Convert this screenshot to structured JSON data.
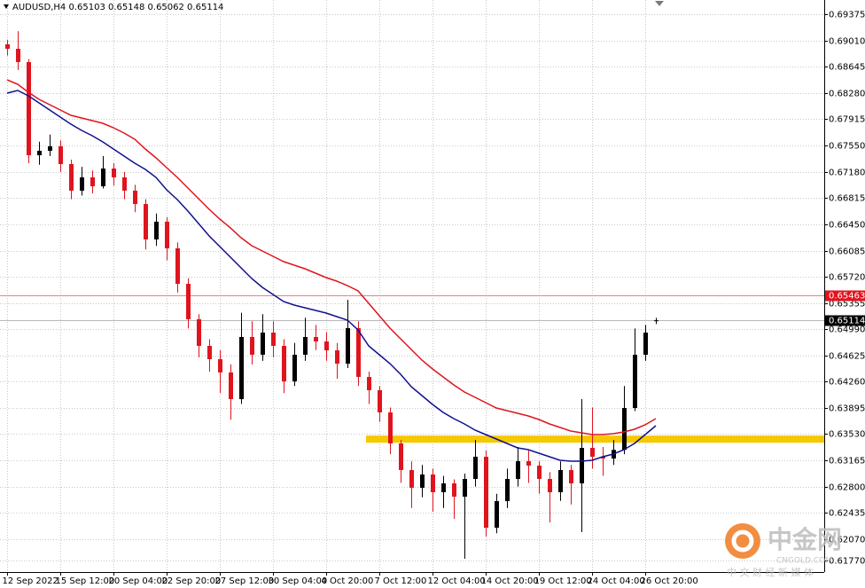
{
  "chart_data": {
    "type": "candlestick",
    "title": "AUDUSD,H4  0.65103 0.65148 0.65062 0.65114",
    "categories": [
      "12 Sep 2022",
      null,
      null,
      null,
      null,
      "15 Sep 12:00",
      null,
      null,
      null,
      null,
      "20 Sep 04:00",
      null,
      null,
      null,
      null,
      "22 Sep 20:00",
      null,
      null,
      null,
      null,
      "27 Sep 12:00",
      null,
      null,
      null,
      null,
      "30 Sep 04:00",
      null,
      null,
      null,
      null,
      "4 Oct 20:00",
      null,
      null,
      null,
      null,
      "7 Oct 12:00",
      null,
      null,
      null,
      null,
      "12 Oct 04:00",
      null,
      null,
      null,
      null,
      "14 Oct 20:00",
      null,
      null,
      null,
      null,
      "19 Oct 12:00",
      null,
      null,
      null,
      null,
      "24 Oct 04:00",
      null,
      null,
      null,
      null,
      "26 Oct 20:00",
      null
    ],
    "open": [
      0.68956,
      0.68894,
      0.68709,
      0.67412,
      0.67474,
      0.67536,
      0.67289,
      0.66919,
      0.67104,
      0.6698,
      0.67227,
      0.67104,
      0.66919,
      0.66733,
      0.6624,
      0.66487,
      0.66116,
      0.65622,
      0.65129,
      0.64758,
      0.64573,
      0.64388,
      0.64017,
      0.64882,
      0.64635,
      0.64943,
      0.64758,
      0.64264,
      0.64635,
      0.64882,
      0.6482,
      0.64696,
      0.64511,
      0.65005,
      0.64326,
      0.64141,
      0.63832,
      0.634,
      0.6303,
      0.62783,
      0.62968,
      0.62721,
      0.62844,
      0.62659,
      0.62906,
      0.63215,
      0.62227,
      0.62597,
      0.62906,
      0.63153,
      0.63091,
      0.62906,
      0.62721,
      0.6303,
      0.62844,
      0.63338,
      0.63215,
      0.6319,
      0.6331,
      0.63894,
      0.64635,
      0.65103
    ],
    "high": [
      0.6902,
      0.6914,
      0.6875,
      0.676,
      0.677,
      0.6762,
      0.6735,
      0.6725,
      0.672,
      0.674,
      0.673,
      0.6718,
      0.67,
      0.668,
      0.666,
      0.6655,
      0.662,
      0.657,
      0.652,
      0.6485,
      0.647,
      0.645,
      0.6522,
      0.651,
      0.652,
      0.651,
      0.6485,
      0.648,
      0.6515,
      0.6505,
      0.6495,
      0.648,
      0.654,
      0.651,
      0.644,
      0.642,
      0.639,
      0.6345,
      0.6315,
      0.631,
      0.6305,
      0.6295,
      0.629,
      0.6298,
      0.6345,
      0.633,
      0.627,
      0.6305,
      0.6335,
      0.633,
      0.6315,
      0.63,
      0.6315,
      0.631,
      0.64017,
      0.639,
      0.6335,
      0.6345,
      0.642,
      0.65,
      0.6505,
      0.65148
    ],
    "low": [
      0.688,
      0.686,
      0.673,
      0.6728,
      0.674,
      0.6718,
      0.668,
      0.6685,
      0.6688,
      0.6695,
      0.6699,
      0.668,
      0.6662,
      0.661,
      0.6615,
      0.6595,
      0.655,
      0.65,
      0.646,
      0.644,
      0.641,
      0.6373,
      0.6395,
      0.645,
      0.6455,
      0.646,
      0.641,
      0.642,
      0.6455,
      0.647,
      0.6455,
      0.643,
      0.6445,
      0.642,
      0.6395,
      0.637,
      0.6325,
      0.6285,
      0.625,
      0.6265,
      0.6245,
      0.625,
      0.6235,
      0.61795,
      0.628,
      0.62104,
      0.6215,
      0.625,
      0.628,
      0.6285,
      0.627,
      0.623,
      0.626,
      0.6255,
      0.62166,
      0.6305,
      0.6295,
      0.631,
      0.6325,
      0.6385,
      0.6455,
      0.65062
    ],
    "close": [
      0.68894,
      0.68709,
      0.67412,
      0.67474,
      0.67536,
      0.67289,
      0.66919,
      0.67104,
      0.6698,
      0.67227,
      0.67104,
      0.66919,
      0.66733,
      0.6624,
      0.66487,
      0.66116,
      0.65622,
      0.65129,
      0.64758,
      0.64573,
      0.64388,
      0.64017,
      0.64882,
      0.64635,
      0.64943,
      0.64758,
      0.64264,
      0.64635,
      0.64882,
      0.6482,
      0.64696,
      0.64511,
      0.65005,
      0.64326,
      0.64141,
      0.63832,
      0.634,
      0.6303,
      0.62783,
      0.62968,
      0.62721,
      0.62844,
      0.62659,
      0.62906,
      0.63215,
      0.62227,
      0.62597,
      0.62906,
      0.63153,
      0.63091,
      0.62906,
      0.62721,
      0.6303,
      0.62844,
      0.63338,
      0.63215,
      0.6319,
      0.6331,
      0.63894,
      0.64635,
      0.64943,
      0.65114
    ],
    "up_color": "#000000",
    "down_color": "#e0141e",
    "series": [
      {
        "color": "#e0141e",
        "values": [
          0.68462,
          0.684,
          0.68289,
          0.6819,
          0.68116,
          0.68042,
          0.67968,
          0.67931,
          0.67894,
          0.67857,
          0.67795,
          0.67721,
          0.67635,
          0.67499,
          0.67375,
          0.6724,
          0.67104,
          0.66956,
          0.66808,
          0.66659,
          0.66524,
          0.664,
          0.66264,
          0.66153,
          0.66079,
          0.66005,
          0.65931,
          0.65882,
          0.65832,
          0.6577,
          0.65709,
          0.65659,
          0.65598,
          0.65524,
          0.65351,
          0.65178,
          0.65005,
          0.64857,
          0.64709,
          0.64561,
          0.64437,
          0.64326,
          0.64215,
          0.64116,
          0.64042,
          0.63968,
          0.63894,
          0.63857,
          0.6382,
          0.63783,
          0.63733,
          0.63672,
          0.63622,
          0.63573,
          0.63548,
          0.63524,
          0.63524,
          0.63536,
          0.63561,
          0.63598,
          0.63659,
          0.63746
        ]
      },
      {
        "color": "#101090",
        "values": [
          0.68277,
          0.68314,
          0.6824,
          0.68141,
          0.68042,
          0.67943,
          0.67845,
          0.67758,
          0.67684,
          0.67598,
          0.67499,
          0.674,
          0.67301,
          0.67215,
          0.67104,
          0.66931,
          0.66795,
          0.66635,
          0.66462,
          0.66289,
          0.66141,
          0.65993,
          0.65845,
          0.65696,
          0.65573,
          0.65474,
          0.65375,
          0.65326,
          0.65289,
          0.65252,
          0.65215,
          0.65166,
          0.65116,
          0.6498,
          0.64758,
          0.64635,
          0.64511,
          0.64363,
          0.6419,
          0.64067,
          0.63943,
          0.63832,
          0.63746,
          0.63672,
          0.63585,
          0.63524,
          0.63462,
          0.634,
          0.63338,
          0.63314,
          0.63264,
          0.63215,
          0.63165,
          0.63153,
          0.63153,
          0.63165,
          0.63215,
          0.63252,
          0.63314,
          0.634,
          0.63524,
          0.63647
        ]
      }
    ],
    "price_lines": [
      {
        "value": 0.65463,
        "color": "#f08080",
        "label_color": "#e0141e"
      },
      {
        "value": 0.65114,
        "color": "#b8b8b8",
        "label_color": "#000000"
      }
    ],
    "zone": {
      "value": 0.6346,
      "start_index": 34,
      "color": "#f5c800"
    },
    "ylim": [
      0.6161,
      0.69573
    ],
    "yticks": [
      0.69375,
      {
        "value": 0.6901,
        "label": "0.69010"
      },
      0.68645,
      {
        "value": 0.6828,
        "label": "0.68280"
      },
      0.67915,
      {
        "value": 0.6755,
        "label": "0.67550"
      },
      {
        "value": 0.6718,
        "label": "0.67180"
      },
      0.66815,
      {
        "value": 0.6645,
        "label": "0.66450"
      },
      0.66085,
      {
        "value": 0.6572,
        "label": "0.65720"
      },
      0.65355,
      {
        "value": 0.6499,
        "label": "0.64990"
      },
      0.64625,
      {
        "value": 0.6426,
        "label": "0.64260"
      },
      0.63895,
      {
        "value": 0.6353,
        "label": "0.63530"
      },
      0.63165,
      {
        "value": 0.628,
        "label": "0.62800"
      },
      0.62435,
      {
        "value": 0.6207,
        "label": "0.62070"
      },
      {
        "value": 0.6177,
        "label": "0.61770"
      }
    ],
    "grid": true
  },
  "watermark": {
    "brand": "中金网",
    "site": "CNGOLD.COM",
    "slogan": "中 文 财 经 新 媒 体"
  }
}
